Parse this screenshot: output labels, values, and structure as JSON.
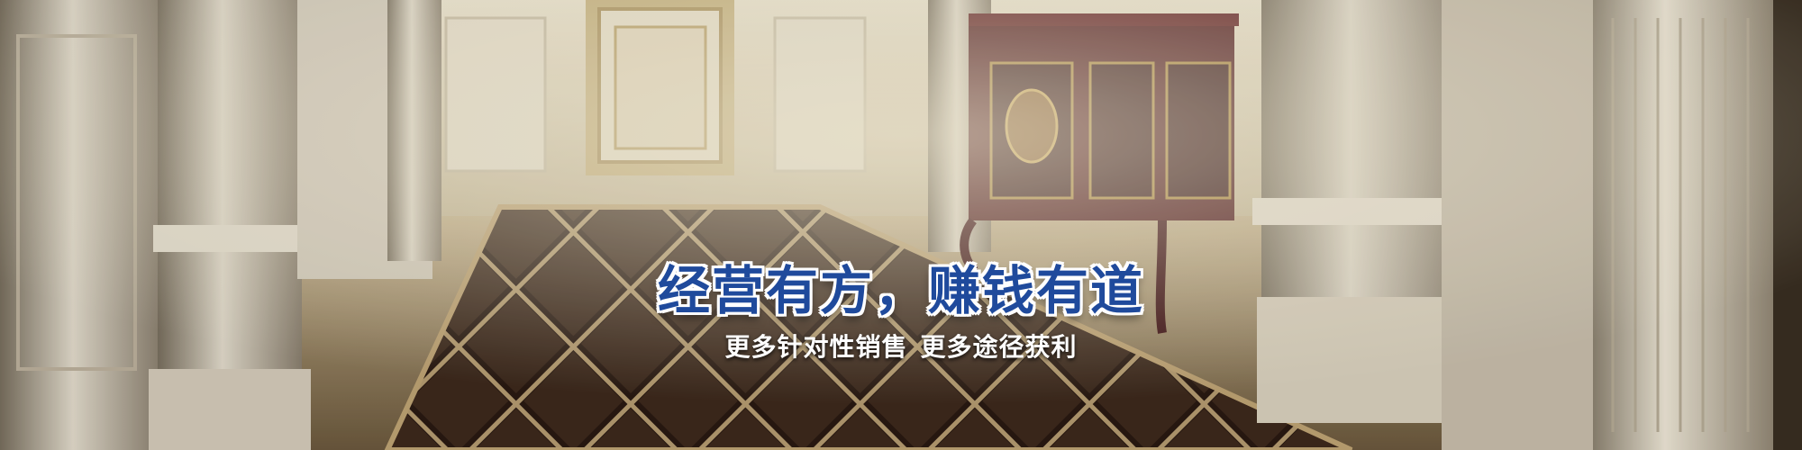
{
  "banner": {
    "headline": "经营有方，赚钱有道",
    "subline_parts": [
      "更多针对性销售",
      "更多途径获利"
    ]
  },
  "colors": {
    "headline_fill": "#1f4a9c",
    "headline_outline": "#ffffff",
    "subline": "#ffffff"
  }
}
